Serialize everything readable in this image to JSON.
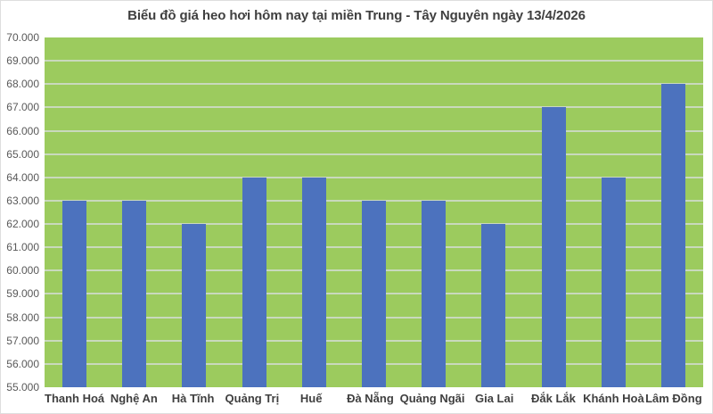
{
  "chart_data": {
    "type": "bar",
    "title": "Biểu đồ giá heo hơi hôm nay tại miền Trung - Tây Nguyên ngày 13/4/2026",
    "categories": [
      "Thanh Hoá",
      "Nghệ An",
      "Hà Tĩnh",
      "Quảng Trị",
      "Huế",
      "Đà Nẵng",
      "Quảng Ngãi",
      "Gia Lai",
      "Đắk Lắk",
      "Khánh Hoà",
      "Lâm Đồng"
    ],
    "values": [
      63000,
      63000,
      62000,
      64000,
      64000,
      63000,
      63000,
      62000,
      67000,
      64000,
      68000
    ],
    "xlabel": "",
    "ylabel": "",
    "ylim": [
      55000,
      70000
    ],
    "ytick_step": 1000,
    "ytick_labels": [
      "55.000",
      "56.000",
      "57.000",
      "58.000",
      "59.000",
      "60.000",
      "61.000",
      "62.000",
      "63.000",
      "64.000",
      "65.000",
      "66.000",
      "67.000",
      "68.000",
      "69.000",
      "70.000"
    ],
    "grid": true,
    "legend": "none",
    "colors": {
      "bar": "#4C72BE",
      "plot_bg": "#9CCB5E",
      "gridline": "#C9D9BD",
      "title_text": "#3F3F3F",
      "ytick_text": "#595959",
      "category_text": "#3F3F3F",
      "background": "#FFFFFF",
      "frame_border": "#DEDEDE"
    }
  }
}
